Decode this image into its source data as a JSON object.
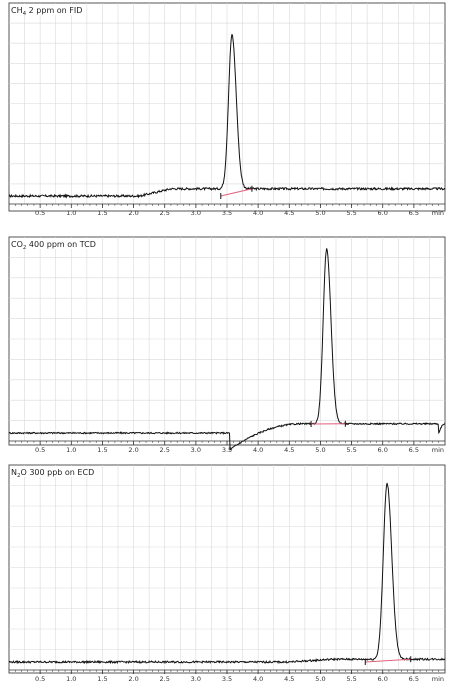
{
  "chart_data": [
    {
      "type": "line",
      "title": {
        "pre": "CH",
        "sub": "4",
        "post": " 2 ppm on FID"
      },
      "x_unit": "min",
      "xlim": [
        0.0,
        7.0
      ],
      "x_ticks": [
        "0.5",
        "1.0",
        "1.5",
        "2.0",
        "2.5",
        "3.0",
        "3.5",
        "4.0",
        "4.5",
        "5.0",
        "5.5",
        "6.0",
        "6.5"
      ],
      "grid": true,
      "baseline_noise": 0.012,
      "steps": [
        {
          "from": 2.1,
          "to": 2.6,
          "delta": 0.04
        }
      ],
      "dips": [],
      "peak": {
        "rt": 3.58,
        "height": 0.85,
        "width": 0.055,
        "start": 3.4,
        "end": 3.9
      }
    },
    {
      "type": "line",
      "title": {
        "pre": "CO",
        "sub": "2",
        "post": " 400 ppm on TCD"
      },
      "x_unit": "min",
      "xlim": [
        0.0,
        7.0
      ],
      "x_ticks": [
        "0.5",
        "1.0",
        "1.5",
        "2.0",
        "2.5",
        "3.0",
        "3.5",
        "4.0",
        "4.5",
        "5.0",
        "5.5",
        "6.0",
        "6.5"
      ],
      "grid": true,
      "baseline_noise": 0.008,
      "steps": [],
      "dips": [
        {
          "at": 3.55,
          "depth": -0.09,
          "recover_to": 4.7,
          "level_after": 0.05
        },
        {
          "at": 6.9,
          "depth": -0.05,
          "recover_to": 7.0,
          "level_after": 0.0
        }
      ],
      "peak": {
        "rt": 5.1,
        "height": 0.95,
        "width": 0.055,
        "start": 4.85,
        "end": 5.4
      }
    },
    {
      "type": "line",
      "title": {
        "pre": "N",
        "sub": "2",
        "post": "O 300 ppb on ECD"
      },
      "x_unit": "min",
      "xlim": [
        0.0,
        7.0
      ],
      "x_ticks": [
        "0.5",
        "1.0",
        "1.5",
        "2.0",
        "2.5",
        "3.0",
        "3.5",
        "4.0",
        "4.5",
        "5.0",
        "5.5",
        "6.0",
        "6.5"
      ],
      "grid": true,
      "baseline_noise": 0.01,
      "steps": [
        {
          "from": 4.5,
          "to": 5.2,
          "delta": 0.015
        }
      ],
      "dips": [],
      "peak": {
        "rt": 6.07,
        "height": 0.95,
        "width": 0.06,
        "start": 5.72,
        "end": 6.45
      }
    }
  ]
}
